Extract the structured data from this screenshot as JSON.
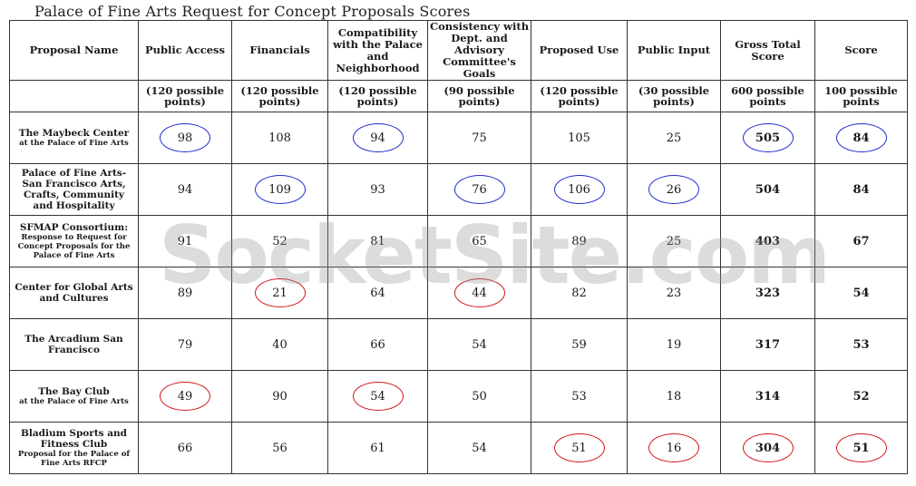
{
  "title": "Palace of Fine Arts Request for Concept Proposals Scores",
  "watermark": "SocketSite.com",
  "colors": {
    "blue_circle": "#1f2bd0",
    "red_circle": "#d4161b",
    "divider": "#2b2bb0"
  },
  "headers": [
    {
      "label": "Proposal Name",
      "points": ""
    },
    {
      "label": "Public Access",
      "points": "(120 possible points)"
    },
    {
      "label": "Financials",
      "points": "(120 possible points)"
    },
    {
      "label": "Compatibility with the Palace and Neighborhood",
      "points": "(120 possible points)"
    },
    {
      "label": "Consistency with Dept. and Advisory Committee's Goals",
      "points": "(90 possible points)"
    },
    {
      "label": "Proposed Use",
      "points": "(120 possible points)"
    },
    {
      "label": "Public Input",
      "points": "(30 possible points)"
    },
    {
      "label": "Gross Total Score",
      "points": "600 possible points"
    },
    {
      "label": "Score",
      "points": "100 possible points"
    }
  ],
  "rows": [
    {
      "name": "The Maybeck Center",
      "name_small": "at the Palace of Fine Arts",
      "values": [
        "98",
        "108",
        "94",
        "75",
        "105",
        "25",
        "505",
        "84"
      ],
      "circles": [
        "blue",
        "",
        "blue",
        "",
        "",
        "",
        "blue",
        "blue"
      ]
    },
    {
      "name": "Palace of Fine Arts-San Francisco Arts, Crafts, Community and Hospitality",
      "name_small": "",
      "values": [
        "94",
        "109",
        "93",
        "76",
        "106",
        "26",
        "504",
        "84"
      ],
      "circles": [
        "",
        "blue",
        "",
        "blue",
        "blue",
        "blue",
        "",
        ""
      ]
    },
    {
      "name": "SFMAP Consortium:",
      "name_small": "Response to Request for Concept Proposals for the Palace of Fine Arts",
      "values": [
        "91",
        "52",
        "81",
        "65",
        "89",
        "25",
        "403",
        "67"
      ],
      "circles": [
        "",
        "",
        "",
        "",
        "",
        "",
        "",
        ""
      ]
    },
    {
      "name": "Center for Global Arts and Cultures",
      "name_small": "",
      "values": [
        "89",
        "21",
        "64",
        "44",
        "82",
        "23",
        "323",
        "54"
      ],
      "circles": [
        "",
        "red",
        "",
        "red",
        "",
        "",
        "",
        ""
      ]
    },
    {
      "name": "The Arcadium San Francisco",
      "name_small": "",
      "values": [
        "79",
        "40",
        "66",
        "54",
        "59",
        "19",
        "317",
        "53"
      ],
      "circles": [
        "",
        "",
        "",
        "",
        "",
        "",
        "",
        ""
      ]
    },
    {
      "name": "The Bay Club",
      "name_small": "at the Palace of Fine Arts",
      "values": [
        "49",
        "90",
        "54",
        "50",
        "53",
        "18",
        "314",
        "52"
      ],
      "circles": [
        "red",
        "",
        "red",
        "",
        "",
        "",
        "",
        ""
      ]
    },
    {
      "name": "Bladium Sports and Fitness Club",
      "name_small": "Proposal for the Palace of Fine Arts RFCP",
      "values": [
        "66",
        "56",
        "61",
        "54",
        "51",
        "16",
        "304",
        "51"
      ],
      "circles": [
        "",
        "",
        "",
        "",
        "red",
        "red",
        "red",
        "red"
      ]
    }
  ]
}
